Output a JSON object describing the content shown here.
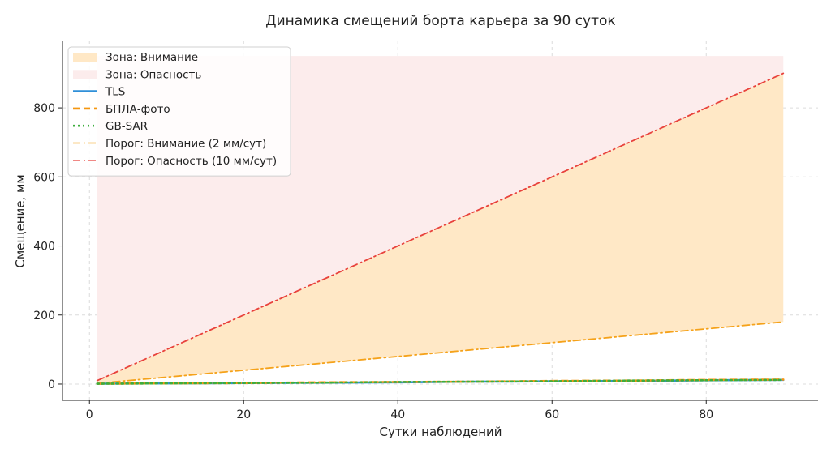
{
  "chart_data": {
    "type": "line",
    "title": "Динамика смещений борта карьера за 90 суток",
    "xlabel": "Сутки наблюдений",
    "ylabel": "Смещение, мм",
    "xlim": [
      -3.5,
      94.5
    ],
    "ylim": [
      -47,
      995
    ],
    "xticks": [
      0,
      20,
      40,
      60,
      80
    ],
    "yticks": [
      0,
      200,
      400,
      600,
      800
    ],
    "grid": true,
    "legend_position": "upper-left",
    "zones": [
      {
        "name": "Зона: Внимание",
        "x": [
          1,
          90
        ],
        "lower": [
          2,
          180
        ],
        "upper": [
          10,
          900
        ],
        "color": "#ffe8c6"
      },
      {
        "name": "Зона: Опасность",
        "x": [
          1,
          90
        ],
        "lower": [
          10,
          900
        ],
        "upper": [
          950,
          950
        ],
        "color": "#fcecec"
      }
    ],
    "series": [
      {
        "name": "TLS",
        "style": "solid",
        "color": "#2f8fd8",
        "x": [
          1,
          10,
          20,
          30,
          40,
          50,
          60,
          70,
          80,
          90
        ],
        "y": [
          1,
          2,
          3,
          4,
          5,
          7,
          8,
          9,
          11,
          12
        ]
      },
      {
        "name": "БПЛА-фото",
        "style": "dashed",
        "color": "#f5960f",
        "x": [
          1,
          10,
          20,
          30,
          40,
          50,
          60,
          70,
          80,
          90
        ],
        "y": [
          1,
          2,
          3,
          5,
          6,
          7,
          9,
          10,
          12,
          13
        ]
      },
      {
        "name": "GB-SAR",
        "style": "dotted",
        "color": "#3cae3c",
        "x": [
          1,
          10,
          20,
          30,
          40,
          50,
          60,
          70,
          80,
          90
        ],
        "y": [
          1,
          2,
          3,
          4,
          6,
          7,
          8,
          10,
          11,
          12
        ]
      },
      {
        "name": "Порог: Внимание (2 мм/сут)",
        "style": "dashdot",
        "color": "#f5a21a",
        "x": [
          1,
          90
        ],
        "y": [
          2,
          180
        ]
      },
      {
        "name": "Порог: Опасность (10 мм/сут)",
        "style": "dashdot",
        "color": "#e8423c",
        "x": [
          1,
          90
        ],
        "y": [
          10,
          900
        ]
      }
    ]
  }
}
